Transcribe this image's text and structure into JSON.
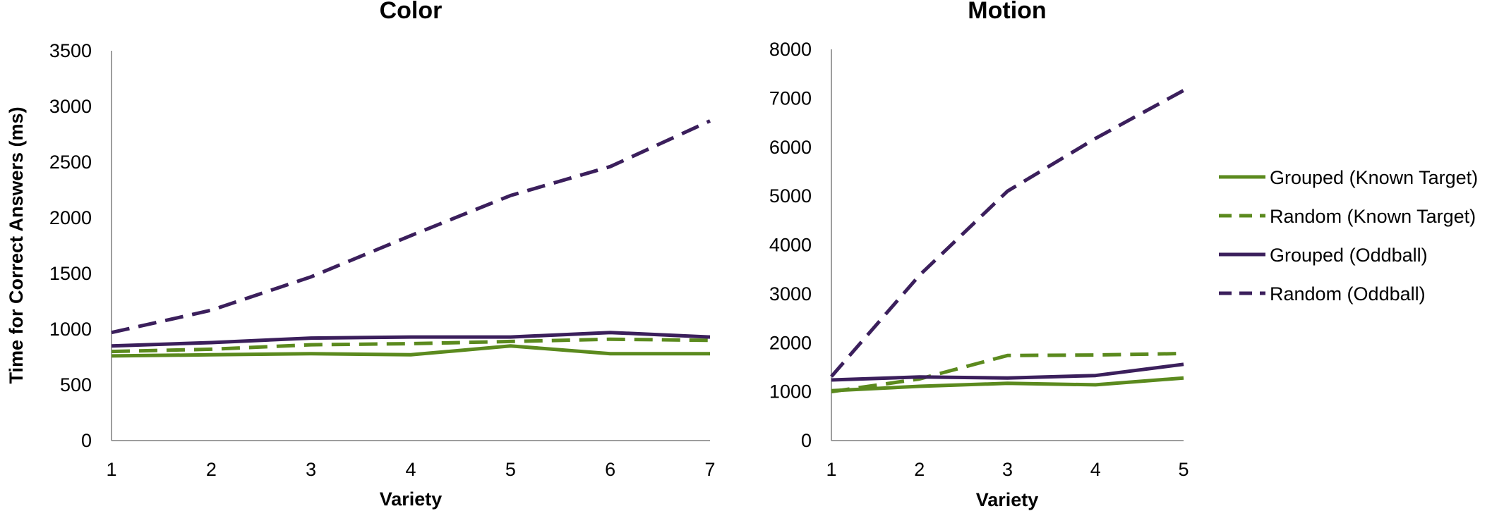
{
  "legend": {
    "position": "right",
    "entries": [
      {
        "label": "Grouped (Known Target)",
        "color": "#5b8a1e",
        "dash": "solid"
      },
      {
        "label": "Random (Known Target)",
        "color": "#5b8a1e",
        "dash": "dashed"
      },
      {
        "label": "Grouped (Oddball)",
        "color": "#3b1f5c",
        "dash": "solid"
      },
      {
        "label": "Random (Oddball)",
        "color": "#3b1f5c",
        "dash": "dashed"
      }
    ]
  },
  "chart_data": [
    {
      "type": "line",
      "title": "Color",
      "xlabel": "Variety",
      "ylabel": "Time for Correct Answers (ms)",
      "x": [
        1,
        2,
        3,
        4,
        5,
        6,
        7
      ],
      "xticks": [
        "1",
        "2",
        "3",
        "4",
        "5",
        "6",
        "7"
      ],
      "yticks": [
        "0",
        "500",
        "1000",
        "1500",
        "2000",
        "2500",
        "3000",
        "3500"
      ],
      "ylim": [
        0,
        3500
      ],
      "grid": false,
      "series": [
        {
          "name": "Grouped (Known Target)",
          "values": [
            760,
            770,
            780,
            770,
            850,
            780,
            780
          ]
        },
        {
          "name": "Random (Known Target)",
          "values": [
            800,
            820,
            860,
            870,
            890,
            910,
            900
          ]
        },
        {
          "name": "Grouped (Oddball)",
          "values": [
            850,
            880,
            920,
            930,
            930,
            970,
            930
          ]
        },
        {
          "name": "Random (Oddball)",
          "values": [
            970,
            1170,
            1470,
            1840,
            2200,
            2460,
            2870
          ]
        }
      ]
    },
    {
      "type": "line",
      "title": "Motion",
      "xlabel": "Variety",
      "ylabel": "",
      "x": [
        1,
        2,
        3,
        4,
        5
      ],
      "xticks": [
        "1",
        "2",
        "3",
        "4",
        "5"
      ],
      "yticks": [
        "0",
        "1000",
        "2000",
        "3000",
        "4000",
        "5000",
        "6000",
        "7000",
        "8000"
      ],
      "ylim": [
        0,
        8000
      ],
      "grid": false,
      "series": [
        {
          "name": "Grouped (Known Target)",
          "values": [
            1020,
            1110,
            1170,
            1140,
            1280
          ]
        },
        {
          "name": "Random (Known Target)",
          "values": [
            1000,
            1260,
            1740,
            1750,
            1780
          ]
        },
        {
          "name": "Grouped (Oddball)",
          "values": [
            1240,
            1300,
            1280,
            1330,
            1560
          ]
        },
        {
          "name": "Random (Oddball)",
          "values": [
            1310,
            3380,
            5100,
            6180,
            7160
          ]
        }
      ]
    }
  ]
}
